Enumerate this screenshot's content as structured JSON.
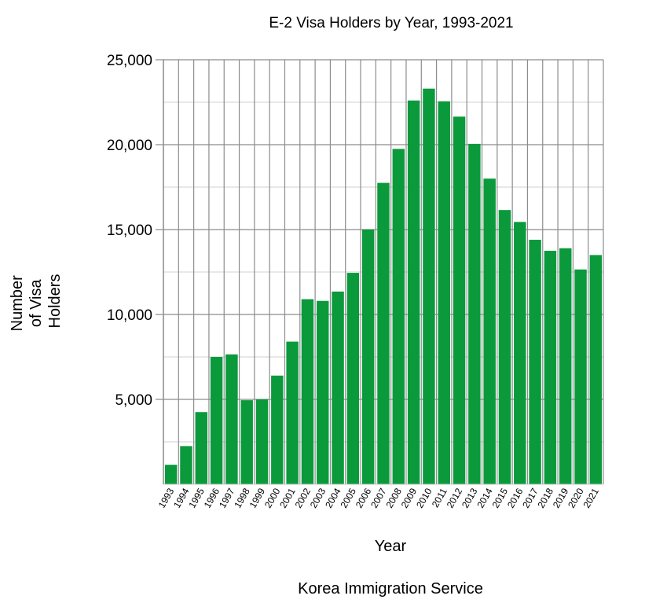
{
  "chart_data": {
    "type": "bar",
    "title": "E-2 Visa Holders by Year, 1993-2021",
    "xlabel": "Year",
    "ylabel_lines": [
      "Number",
      "of Visa",
      "Holders"
    ],
    "source": "Korea Immigration Service",
    "ylim": [
      0,
      25000
    ],
    "yticks": [
      5000,
      10000,
      15000,
      20000,
      25000
    ],
    "ytick_labels": [
      "5,000",
      "10,000",
      "15,000",
      "20,000",
      "25,000"
    ],
    "grid": true,
    "bar_color": "#0a9a3c",
    "categories": [
      "1993",
      "1994",
      "1995",
      "1996",
      "1997",
      "1998",
      "1999",
      "2000",
      "2001",
      "2002",
      "2003",
      "2004",
      "2005",
      "2006",
      "2007",
      "2008",
      "2009",
      "2010",
      "2011",
      "2012",
      "2013",
      "2014",
      "2015",
      "2016",
      "2017",
      "2018",
      "2019",
      "2020",
      "2021"
    ],
    "values": [
      1150,
      2250,
      4250,
      7500,
      7650,
      4950,
      5000,
      6400,
      8400,
      10900,
      10800,
      11350,
      12450,
      15000,
      17750,
      19750,
      22600,
      23300,
      22550,
      21650,
      20050,
      18000,
      16150,
      15450,
      14400,
      13750,
      13900,
      12650,
      13500
    ]
  }
}
